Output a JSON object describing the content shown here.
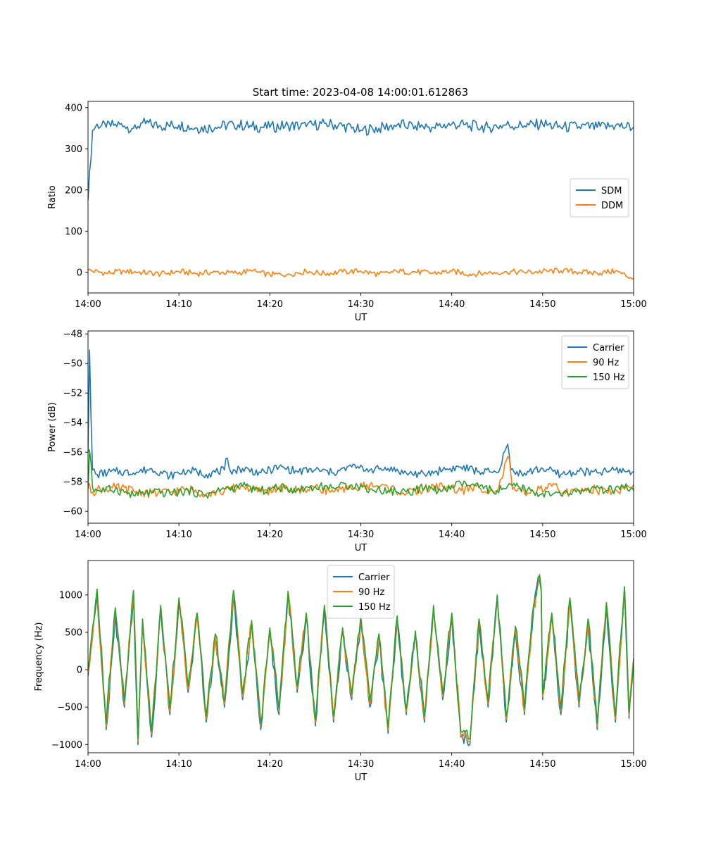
{
  "chart_data": [
    {
      "type": "line",
      "title": "Start time: 2023-04-08 14:00:01.612863",
      "xlabel": "UT",
      "ylabel": "Ratio",
      "x_range": [
        "14:00",
        "15:00"
      ],
      "x_ticks": [
        "14:00",
        "14:10",
        "14:20",
        "14:30",
        "14:40",
        "14:50",
        "15:00"
      ],
      "ylim": [
        -50,
        415
      ],
      "y_ticks": [
        0,
        100,
        200,
        300,
        400
      ],
      "y_tick_labels": [
        "0",
        "100",
        "200",
        "300",
        "400"
      ],
      "grid": false,
      "legend_position": "center-right",
      "series": [
        {
          "name": "SDM",
          "color": "#1f77b4",
          "x_minutes": [
            0,
            0.5,
            1,
            2,
            3,
            4,
            5,
            6,
            8,
            10,
            12,
            14,
            16,
            18,
            20,
            22,
            24,
            26,
            28,
            30,
            32,
            34,
            36,
            38,
            40,
            42,
            44,
            46,
            48,
            50,
            52,
            54,
            56,
            58,
            60
          ],
          "values": [
            175,
            345,
            360,
            352,
            360,
            355,
            350,
            363,
            355,
            358,
            350,
            352,
            360,
            354,
            352,
            357,
            354,
            362,
            355,
            345,
            350,
            358,
            356,
            352,
            360,
            356,
            352,
            358,
            356,
            360,
            352,
            354,
            352,
            356,
            352
          ]
        },
        {
          "name": "DDM",
          "color": "#ff7f0e",
          "x_minutes": [
            0,
            2,
            4,
            6,
            8,
            10,
            12,
            14,
            16,
            18,
            20,
            22,
            24,
            26,
            28,
            30,
            32,
            34,
            36,
            38,
            40,
            42,
            44,
            46,
            48,
            50,
            52,
            54,
            56,
            58,
            60
          ],
          "values": [
            5,
            -2,
            3,
            0,
            -4,
            2,
            -3,
            1,
            -2,
            3,
            -6,
            -4,
            2,
            -3,
            1,
            3,
            -5,
            2,
            1,
            -2,
            3,
            -4,
            -2,
            2,
            0,
            2,
            4,
            1,
            -2,
            3,
            -15
          ]
        }
      ]
    },
    {
      "type": "line",
      "xlabel": "UT",
      "ylabel": "Power (dB)",
      "x_range": [
        "14:00",
        "15:00"
      ],
      "x_ticks": [
        "14:00",
        "14:10",
        "14:20",
        "14:30",
        "14:40",
        "14:50",
        "15:00"
      ],
      "ylim": [
        -60.8,
        -47.8
      ],
      "y_ticks": [
        -60,
        -58,
        -56,
        -54,
        -52,
        -50,
        -48
      ],
      "y_tick_labels": [
        "−60",
        "−58",
        "−56",
        "−54",
        "−52",
        "−50",
        "−48"
      ],
      "grid": false,
      "legend_position": "top-right",
      "series": [
        {
          "name": "Carrier",
          "color": "#1f77b4",
          "x_minutes": [
            0,
            0.15,
            0.3,
            0.5,
            1,
            3,
            5,
            7,
            9,
            11,
            13,
            15,
            15.3,
            15.6,
            17,
            19,
            21,
            23,
            25,
            27,
            29,
            31,
            33,
            35,
            37,
            39,
            41,
            43,
            45,
            46.2,
            46.5,
            46.8,
            48,
            50,
            52,
            54,
            56,
            58,
            60
          ],
          "values": [
            -56,
            -48.6,
            -53,
            -57.2,
            -57.5,
            -57.3,
            -57.4,
            -57.1,
            -57.6,
            -57.2,
            -57.5,
            -57.2,
            -56.3,
            -57.3,
            -57.1,
            -57.4,
            -57.0,
            -57.3,
            -57.2,
            -57.4,
            -57.0,
            -57.2,
            -57.1,
            -57.4,
            -57.5,
            -57.2,
            -57.0,
            -57.3,
            -57.4,
            -55.4,
            -57.2,
            -57.3,
            -57.4,
            -57.1,
            -57.5,
            -57.3,
            -57.4,
            -57.2,
            -57.3
          ]
        },
        {
          "name": "90 Hz",
          "color": "#ff7f0e",
          "x_minutes": [
            0,
            0.5,
            1,
            3,
            5,
            7,
            9,
            11,
            13,
            15,
            17,
            19,
            21,
            23,
            25,
            27,
            29,
            31,
            33,
            35,
            37,
            39,
            41,
            43,
            45,
            46.3,
            46.6,
            47,
            49,
            51,
            53,
            55,
            57,
            59,
            60
          ],
          "values": [
            -58.3,
            -58.7,
            -58.5,
            -58.4,
            -58.6,
            -58.8,
            -58.7,
            -58.5,
            -58.8,
            -58.6,
            -58.3,
            -58.7,
            -58.4,
            -58.6,
            -58.3,
            -58.7,
            -58.5,
            -58.2,
            -58.4,
            -58.8,
            -58.5,
            -58.3,
            -58.6,
            -58.4,
            -58.6,
            -56.2,
            -58.5,
            -58.6,
            -58.7,
            -58.3,
            -58.8,
            -58.4,
            -58.7,
            -58.5,
            -58.2
          ]
        },
        {
          "name": "150 Hz",
          "color": "#2ca02c",
          "x_minutes": [
            0,
            0.2,
            0.5,
            1,
            3,
            5,
            7,
            9,
            11,
            13,
            15,
            17,
            19,
            21,
            23,
            25,
            27,
            29,
            31,
            33,
            35,
            37,
            39,
            41,
            43,
            45,
            47,
            49,
            51,
            53,
            55,
            57,
            59,
            60
          ],
          "values": [
            -58.5,
            -55.3,
            -58.4,
            -58.6,
            -58.5,
            -58.9,
            -58.7,
            -58.8,
            -58.6,
            -58.9,
            -58.5,
            -58.3,
            -58.6,
            -58.4,
            -58.5,
            -58.3,
            -58.4,
            -58.2,
            -58.5,
            -58.6,
            -58.7,
            -58.4,
            -58.6,
            -58.1,
            -58.4,
            -58.6,
            -58.3,
            -58.7,
            -58.9,
            -58.8,
            -58.5,
            -58.6,
            -58.4,
            -58.6
          ]
        }
      ]
    },
    {
      "type": "line",
      "xlabel": "UT",
      "ylabel": "Frequency (Hz)",
      "x_range": [
        "14:00",
        "15:00"
      ],
      "x_ticks": [
        "14:00",
        "14:10",
        "14:20",
        "14:30",
        "14:40",
        "14:50",
        "15:00"
      ],
      "ylim": [
        -1110,
        1460
      ],
      "y_ticks": [
        -1000,
        -500,
        0,
        500,
        1000
      ],
      "y_tick_labels": [
        "−1000",
        "−500",
        "0",
        "500",
        "1000"
      ],
      "grid": false,
      "legend_position": "top-center",
      "series": [
        {
          "name": "Carrier",
          "color": "#1f77b4",
          "x_minutes": [
            0,
            1,
            2,
            3,
            4,
            5,
            5.5,
            6,
            7,
            8,
            9,
            10,
            11,
            12,
            13,
            14,
            15,
            16,
            17,
            18,
            19,
            20,
            21,
            22,
            23,
            24,
            25,
            26,
            27,
            28,
            29,
            30,
            31,
            32,
            33,
            34,
            35,
            36,
            37,
            38,
            39,
            40,
            41,
            42,
            43,
            44,
            45,
            46,
            47,
            48,
            49,
            49.8,
            50,
            51,
            52,
            53,
            54,
            55,
            56,
            57,
            58,
            59,
            59.5,
            60
          ],
          "values": [
            -80,
            1000,
            -800,
            750,
            -500,
            1000,
            -1000,
            600,
            -900,
            800,
            -600,
            900,
            -300,
            700,
            -700,
            400,
            -500,
            1000,
            -400,
            600,
            -800,
            500,
            -600,
            1000,
            -300,
            700,
            -750,
            800,
            -700,
            500,
            -400,
            650,
            -500,
            400,
            -850,
            650,
            -600,
            450,
            -700,
            800,
            -400,
            700,
            -900,
            -1000,
            600,
            -500,
            950,
            -700,
            500,
            -600,
            800,
            1350,
            -400,
            700,
            -600,
            900,
            -500,
            600,
            -800,
            850,
            -700,
            1100,
            -650,
            150
          ]
        },
        {
          "name": "90 Hz",
          "color": "#ff7f0e",
          "x_minutes": [
            0,
            1,
            2,
            3,
            4,
            5,
            5.5,
            6,
            7,
            8,
            9,
            10,
            11,
            12,
            13,
            14,
            15,
            16,
            17,
            18,
            19,
            20,
            21,
            22,
            23,
            24,
            25,
            26,
            27,
            28,
            29,
            30,
            31,
            32,
            33,
            34,
            35,
            36,
            37,
            38,
            39,
            40,
            41,
            42,
            43,
            44,
            45,
            46,
            47,
            48,
            49,
            49.8,
            50,
            51,
            52,
            53,
            54,
            55,
            56,
            57,
            58,
            59,
            59.5,
            60
          ],
          "values": [
            -40,
            1040,
            -760,
            790,
            -460,
            1040,
            -960,
            640,
            -860,
            840,
            -560,
            940,
            -260,
            740,
            -660,
            440,
            -460,
            1040,
            -360,
            640,
            -760,
            540,
            -560,
            1040,
            -260,
            740,
            -710,
            840,
            -660,
            540,
            -360,
            690,
            -460,
            440,
            -810,
            690,
            -560,
            490,
            -660,
            840,
            -360,
            740,
            -860,
            -960,
            640,
            -460,
            990,
            -660,
            540,
            -560,
            840,
            1350,
            -360,
            740,
            -560,
            940,
            -460,
            640,
            -760,
            890,
            -660,
            1100,
            -610,
            150
          ]
        },
        {
          "name": "150 Hz",
          "color": "#2ca02c",
          "x_minutes": [
            0,
            1,
            2,
            3,
            4,
            5,
            5.5,
            6,
            7,
            8,
            9,
            10,
            11,
            12,
            13,
            14,
            15,
            16,
            17,
            18,
            19,
            20,
            21,
            22,
            23,
            24,
            25,
            26,
            27,
            28,
            29,
            30,
            31,
            32,
            33,
            34,
            35,
            36,
            37,
            38,
            39,
            40,
            41,
            42,
            43,
            44,
            45,
            46,
            47,
            48,
            49,
            49.8,
            50,
            51,
            52,
            53,
            54,
            55,
            56,
            57,
            58,
            59,
            59.5,
            60
          ],
          "values": [
            0,
            1080,
            -720,
            830,
            -420,
            1060,
            -920,
            680,
            -820,
            860,
            -520,
            960,
            -220,
            760,
            -620,
            480,
            -420,
            1060,
            -320,
            660,
            -720,
            560,
            -520,
            1050,
            -220,
            760,
            -670,
            860,
            -620,
            560,
            -320,
            720,
            -420,
            480,
            -770,
            720,
            -520,
            520,
            -620,
            860,
            -320,
            760,
            -820,
            -920,
            680,
            -420,
            1000,
            -620,
            580,
            -520,
            860,
            1370,
            -320,
            760,
            -520,
            960,
            -420,
            680,
            -720,
            900,
            -620,
            1110,
            -570,
            150
          ]
        }
      ]
    }
  ]
}
